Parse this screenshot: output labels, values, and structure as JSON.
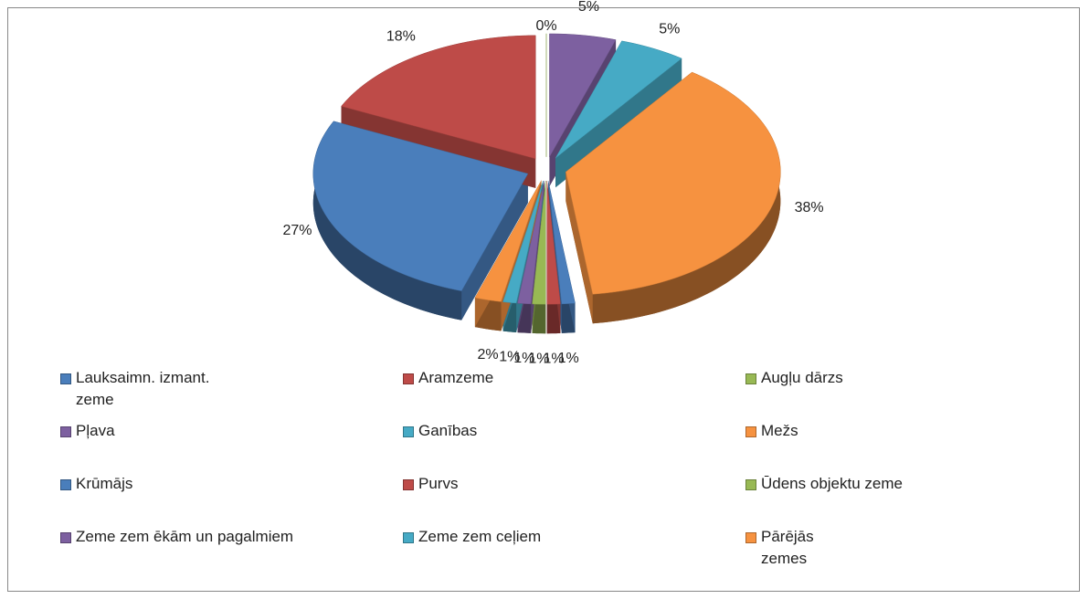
{
  "chart_data": {
    "type": "pie",
    "categories": [
      "Lauksaimn. izmant. zeme",
      "Aramzeme",
      "Augļu dārzs",
      "Pļava",
      "Ganības",
      "Mežs",
      "Krūmājs",
      "Purvs",
      "Ūdens objektu zeme",
      "Zeme zem ēkām un pagalmiem",
      "Zeme zem ceļiem",
      "Pārējās zemes"
    ],
    "values": [
      27,
      18,
      0,
      5,
      5,
      38,
      1,
      1,
      1,
      1,
      1,
      2
    ],
    "value_labels": [
      "27%",
      "18%",
      "0%",
      "5%",
      "5%",
      "38%",
      "1%",
      "1%",
      "1%",
      "1%",
      "1%",
      "2%"
    ],
    "colors": [
      "#4a7ebb",
      "#be4b48",
      "#98b954",
      "#7d60a0",
      "#46aac5",
      "#f69240",
      "#4a7ebb",
      "#be4b48",
      "#98b954",
      "#7d60a0",
      "#46aac5",
      "#f69240"
    ],
    "start_angle": 198,
    "exploded": true,
    "legend": "bottom"
  }
}
